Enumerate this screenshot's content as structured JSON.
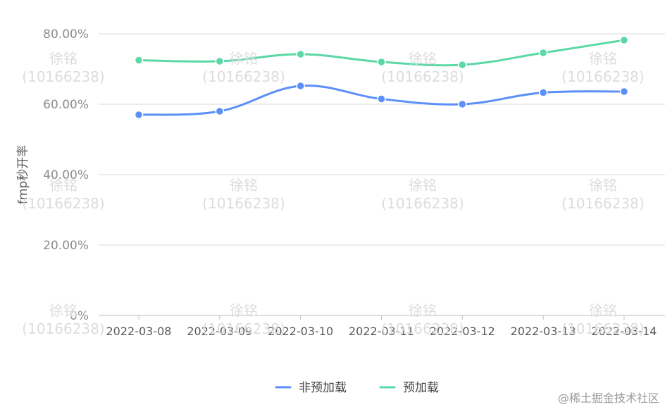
{
  "chart_data": {
    "type": "line",
    "ylabel": "fmp秒开率",
    "xlabel": "",
    "categories": [
      "2022-03-08",
      "2022-03-09",
      "2022-03-10",
      "2022-03-11",
      "2022-03-12",
      "2022-03-13",
      "2022-03-14"
    ],
    "y_ticks": [
      "0%",
      "20.00%",
      "40.00%",
      "60.00%",
      "80.00%"
    ],
    "ylim": [
      0,
      80
    ],
    "grid": "horizontal",
    "legend_position": "bottom",
    "series": [
      {
        "name": "非预加载",
        "color": "#5b8ff9",
        "values": [
          57.0,
          58.0,
          65.2,
          61.5,
          60.0,
          63.3,
          63.6
        ]
      },
      {
        "name": "预加载",
        "color": "#5ad8a6",
        "values": [
          72.5,
          72.2,
          74.2,
          72.0,
          71.2,
          74.6,
          78.2
        ]
      }
    ]
  },
  "watermark": {
    "line1": "徐铭",
    "line2": "(10166238)"
  },
  "site_mark": "@稀土掘金技术社区"
}
